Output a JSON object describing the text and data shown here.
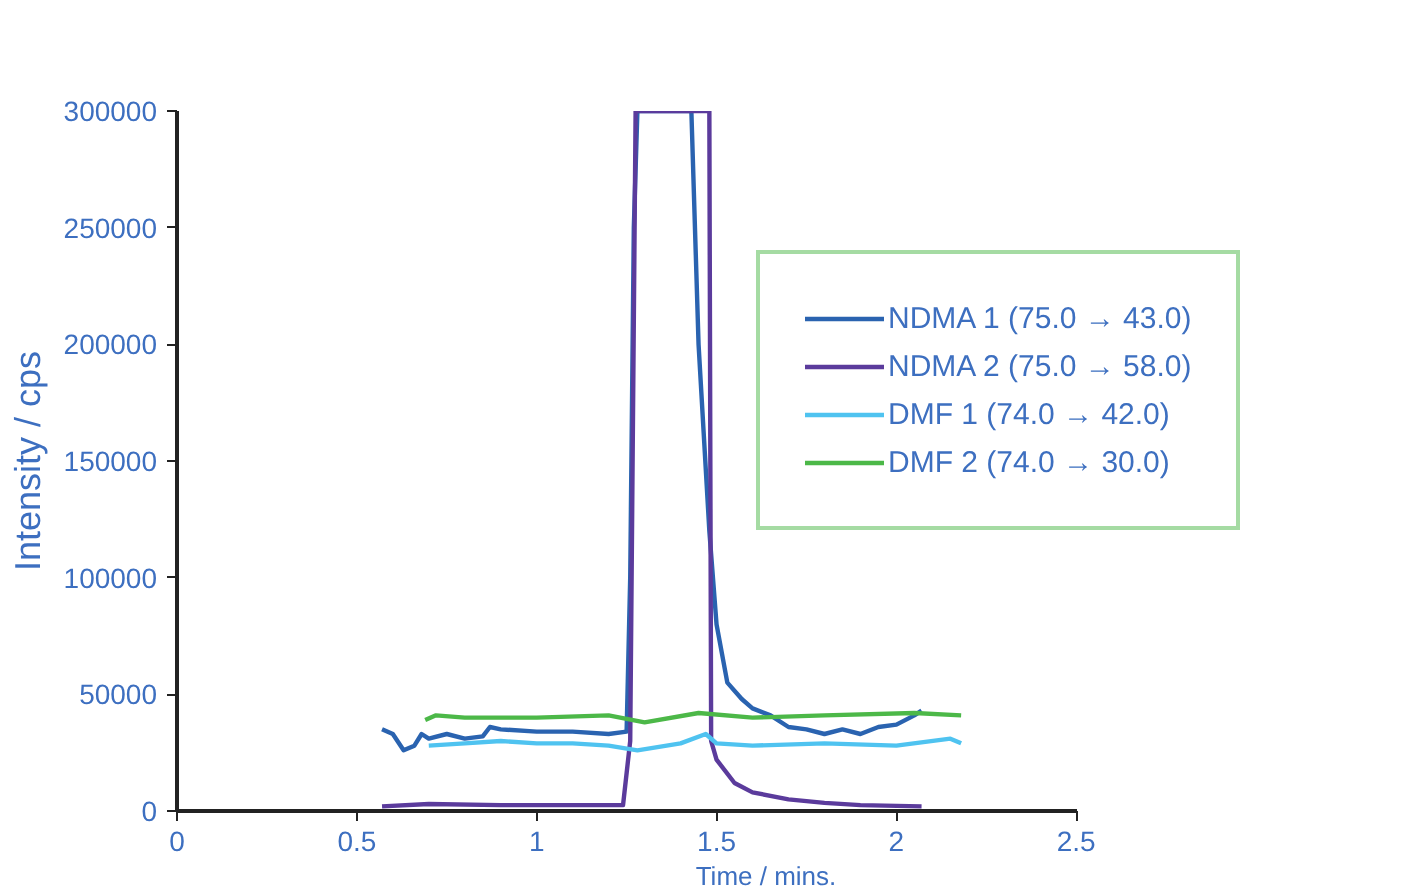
{
  "chart_data": {
    "type": "line",
    "xlabel": "Time / mins.",
    "ylabel": "Intensity / cps",
    "xlim": [
      0,
      2.5
    ],
    "xticks": [
      0,
      0.5,
      1,
      1.5,
      2,
      2.5
    ],
    "ylim": [
      0,
      300000
    ],
    "yticks": [
      0,
      50000,
      100000,
      150000,
      200000,
      250000,
      300000
    ],
    "grid": false,
    "legend": "top right",
    "line_style": "solid",
    "marker": "none",
    "series": [
      {
        "name": "NDMA 1 (75.0 → 43.0)",
        "color": "#2a63b0",
        "x": [
          0.57,
          0.6,
          0.63,
          0.66,
          0.68,
          0.7,
          0.75,
          0.8,
          0.85,
          0.87,
          0.9,
          1.0,
          1.1,
          1.2,
          1.25,
          1.26,
          1.27,
          1.28,
          1.43,
          1.45,
          1.48,
          1.5,
          1.53,
          1.57,
          1.6,
          1.65,
          1.7,
          1.75,
          1.8,
          1.85,
          1.9,
          1.95,
          2.0,
          2.05,
          2.07
        ],
        "values": [
          35000,
          33000,
          26000,
          28000,
          33000,
          31000,
          33000,
          31000,
          32000,
          36000,
          35000,
          34000,
          34000,
          33000,
          34000,
          100000,
          250000,
          300000,
          300000,
          200000,
          120000,
          80000,
          55000,
          48000,
          44000,
          41000,
          36000,
          35000,
          33000,
          35000,
          33000,
          36000,
          37000,
          41000,
          43000
        ]
      },
      {
        "name": "NDMA 2 (75.0 → 58.0)",
        "color": "#5b3b9c",
        "x": [
          0.57,
          0.7,
          0.9,
          1.1,
          1.24,
          1.26,
          1.275,
          1.48,
          1.485,
          1.5,
          1.55,
          1.6,
          1.7,
          1.8,
          1.9,
          2.07
        ],
        "values": [
          2000,
          3000,
          2500,
          2500,
          2500,
          30000,
          300000,
          300000,
          30000,
          22000,
          12000,
          8000,
          5000,
          3500,
          2500,
          2000
        ]
      },
      {
        "name": "DMF 1 (74.0 → 42.0)",
        "color": "#4fc3f0",
        "x": [
          0.7,
          0.8,
          0.9,
          1.0,
          1.1,
          1.2,
          1.28,
          1.4,
          1.47,
          1.5,
          1.6,
          1.8,
          2.0,
          2.15,
          2.18
        ],
        "values": [
          28000,
          29000,
          30000,
          29000,
          29000,
          28000,
          26000,
          29000,
          33000,
          29000,
          28000,
          29000,
          28000,
          31000,
          29000
        ]
      },
      {
        "name": "DMF 2 (74.0 → 30.0)",
        "color": "#4cb848",
        "x": [
          0.69,
          0.72,
          0.8,
          1.0,
          1.2,
          1.3,
          1.45,
          1.6,
          1.8,
          2.05,
          2.18
        ],
        "values": [
          39000,
          41000,
          40000,
          40000,
          41000,
          38000,
          42000,
          40000,
          41000,
          42000,
          41000
        ]
      }
    ]
  }
}
